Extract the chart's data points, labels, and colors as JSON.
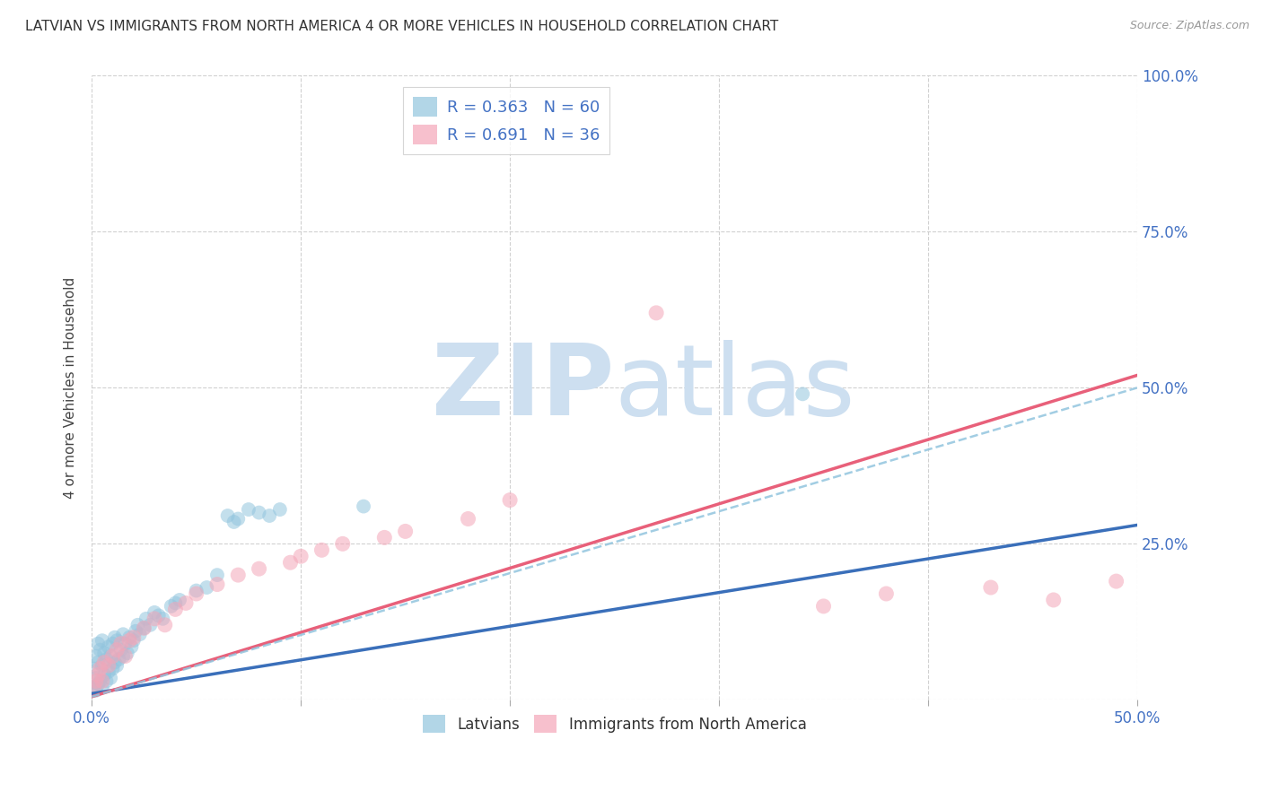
{
  "title": "LATVIAN VS IMMIGRANTS FROM NORTH AMERICA 4 OR MORE VEHICLES IN HOUSEHOLD CORRELATION CHART",
  "source": "Source: ZipAtlas.com",
  "ylabel": "4 or more Vehicles in Household",
  "xlim": [
    0.0,
    0.5
  ],
  "ylim": [
    0.0,
    1.0
  ],
  "legend_r1": "R = 0.363",
  "legend_n1": "N = 60",
  "legend_r2": "R = 0.691",
  "legend_n2": "N = 36",
  "blue_color": "#92c5de",
  "pink_color": "#f4a6b8",
  "trend_blue": "#3a6fba",
  "trend_pink": "#e8607a",
  "dashed_color": "#92c5de",
  "watermark_color": "#cddff0",
  "blue_trend_x": [
    0.0,
    0.5
  ],
  "blue_trend_y": [
    0.01,
    0.28
  ],
  "pink_trend_x": [
    0.0,
    0.5
  ],
  "pink_trend_y": [
    0.005,
    0.52
  ],
  "dashed_trend_x": [
    0.0,
    0.5
  ],
  "dashed_trend_y": [
    0.005,
    0.5
  ],
  "blue_x": [
    0.001,
    0.001,
    0.002,
    0.002,
    0.002,
    0.003,
    0.003,
    0.003,
    0.004,
    0.004,
    0.005,
    0.005,
    0.005,
    0.006,
    0.006,
    0.007,
    0.007,
    0.008,
    0.008,
    0.009,
    0.009,
    0.01,
    0.01,
    0.011,
    0.011,
    0.012,
    0.012,
    0.013,
    0.014,
    0.015,
    0.015,
    0.016,
    0.017,
    0.018,
    0.019,
    0.02,
    0.021,
    0.022,
    0.023,
    0.025,
    0.026,
    0.028,
    0.03,
    0.032,
    0.034,
    0.038,
    0.04,
    0.042,
    0.05,
    0.055,
    0.06,
    0.065,
    0.068,
    0.07,
    0.075,
    0.08,
    0.085,
    0.09,
    0.13,
    0.34
  ],
  "blue_y": [
    0.02,
    0.05,
    0.015,
    0.035,
    0.07,
    0.025,
    0.06,
    0.09,
    0.03,
    0.08,
    0.02,
    0.055,
    0.095,
    0.04,
    0.075,
    0.03,
    0.065,
    0.045,
    0.085,
    0.035,
    0.07,
    0.05,
    0.09,
    0.06,
    0.1,
    0.055,
    0.095,
    0.065,
    0.08,
    0.07,
    0.105,
    0.09,
    0.075,
    0.1,
    0.085,
    0.095,
    0.11,
    0.12,
    0.105,
    0.115,
    0.13,
    0.12,
    0.14,
    0.135,
    0.13,
    0.15,
    0.155,
    0.16,
    0.175,
    0.18,
    0.2,
    0.295,
    0.285,
    0.29,
    0.305,
    0.3,
    0.295,
    0.305,
    0.31,
    0.49
  ],
  "pink_x": [
    0.001,
    0.002,
    0.003,
    0.004,
    0.005,
    0.006,
    0.008,
    0.01,
    0.012,
    0.014,
    0.016,
    0.018,
    0.02,
    0.025,
    0.03,
    0.035,
    0.04,
    0.045,
    0.05,
    0.06,
    0.07,
    0.08,
    0.095,
    0.1,
    0.11,
    0.12,
    0.14,
    0.15,
    0.18,
    0.2,
    0.27,
    0.35,
    0.38,
    0.43,
    0.46,
    0.49
  ],
  "pink_y": [
    0.02,
    0.03,
    0.04,
    0.05,
    0.03,
    0.06,
    0.055,
    0.07,
    0.08,
    0.09,
    0.07,
    0.095,
    0.1,
    0.115,
    0.13,
    0.12,
    0.145,
    0.155,
    0.17,
    0.185,
    0.2,
    0.21,
    0.22,
    0.23,
    0.24,
    0.25,
    0.26,
    0.27,
    0.29,
    0.32,
    0.62,
    0.15,
    0.17,
    0.18,
    0.16,
    0.19
  ]
}
